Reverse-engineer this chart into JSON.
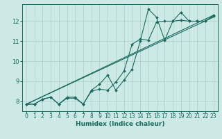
{
  "background_color": "#cce9e5",
  "grid_color": "#afd4cf",
  "line_color": "#1a6b5e",
  "xlabel": "Humidex (Indice chaleur)",
  "xlim": [
    -0.5,
    23.5
  ],
  "ylim": [
    7.5,
    12.85
  ],
  "yticks": [
    8,
    9,
    10,
    11,
    12
  ],
  "xticks": [
    0,
    1,
    2,
    3,
    4,
    5,
    6,
    7,
    8,
    9,
    10,
    11,
    12,
    13,
    14,
    15,
    16,
    17,
    18,
    19,
    20,
    21,
    22,
    23
  ],
  "series1_x": [
    0,
    1,
    2,
    3,
    4,
    5,
    6,
    7,
    8,
    9,
    10,
    11,
    12,
    13,
    14,
    15,
    16,
    17,
    18,
    19,
    20,
    21,
    22,
    23
  ],
  "series1_y": [
    7.85,
    7.85,
    8.1,
    8.2,
    7.85,
    8.2,
    8.2,
    7.85,
    8.55,
    8.85,
    9.3,
    8.55,
    9.05,
    9.6,
    11.0,
    12.6,
    12.2,
    11.05,
    12.0,
    12.45,
    12.0,
    12.0,
    12.0,
    12.3
  ],
  "series2_x": [
    0,
    1,
    2,
    3,
    4,
    5,
    6,
    7,
    8,
    9,
    10,
    11,
    12,
    13,
    14,
    15,
    16,
    17,
    18,
    19,
    20,
    21,
    22,
    23
  ],
  "series2_y": [
    7.85,
    7.85,
    8.1,
    8.2,
    7.85,
    8.15,
    8.15,
    7.85,
    8.5,
    8.6,
    8.55,
    8.95,
    9.5,
    10.85,
    11.1,
    11.05,
    11.95,
    12.0,
    12.0,
    12.05,
    12.0,
    12.0,
    12.0,
    12.25
  ],
  "series3_x": [
    0,
    23
  ],
  "series3_y": [
    7.85,
    12.3
  ],
  "series4_x": [
    0,
    23
  ],
  "series4_y": [
    7.85,
    12.2
  ],
  "tick_fontsize": 5.5,
  "xlabel_fontsize": 6.5,
  "marker_size": 2.0,
  "line_width": 0.8
}
